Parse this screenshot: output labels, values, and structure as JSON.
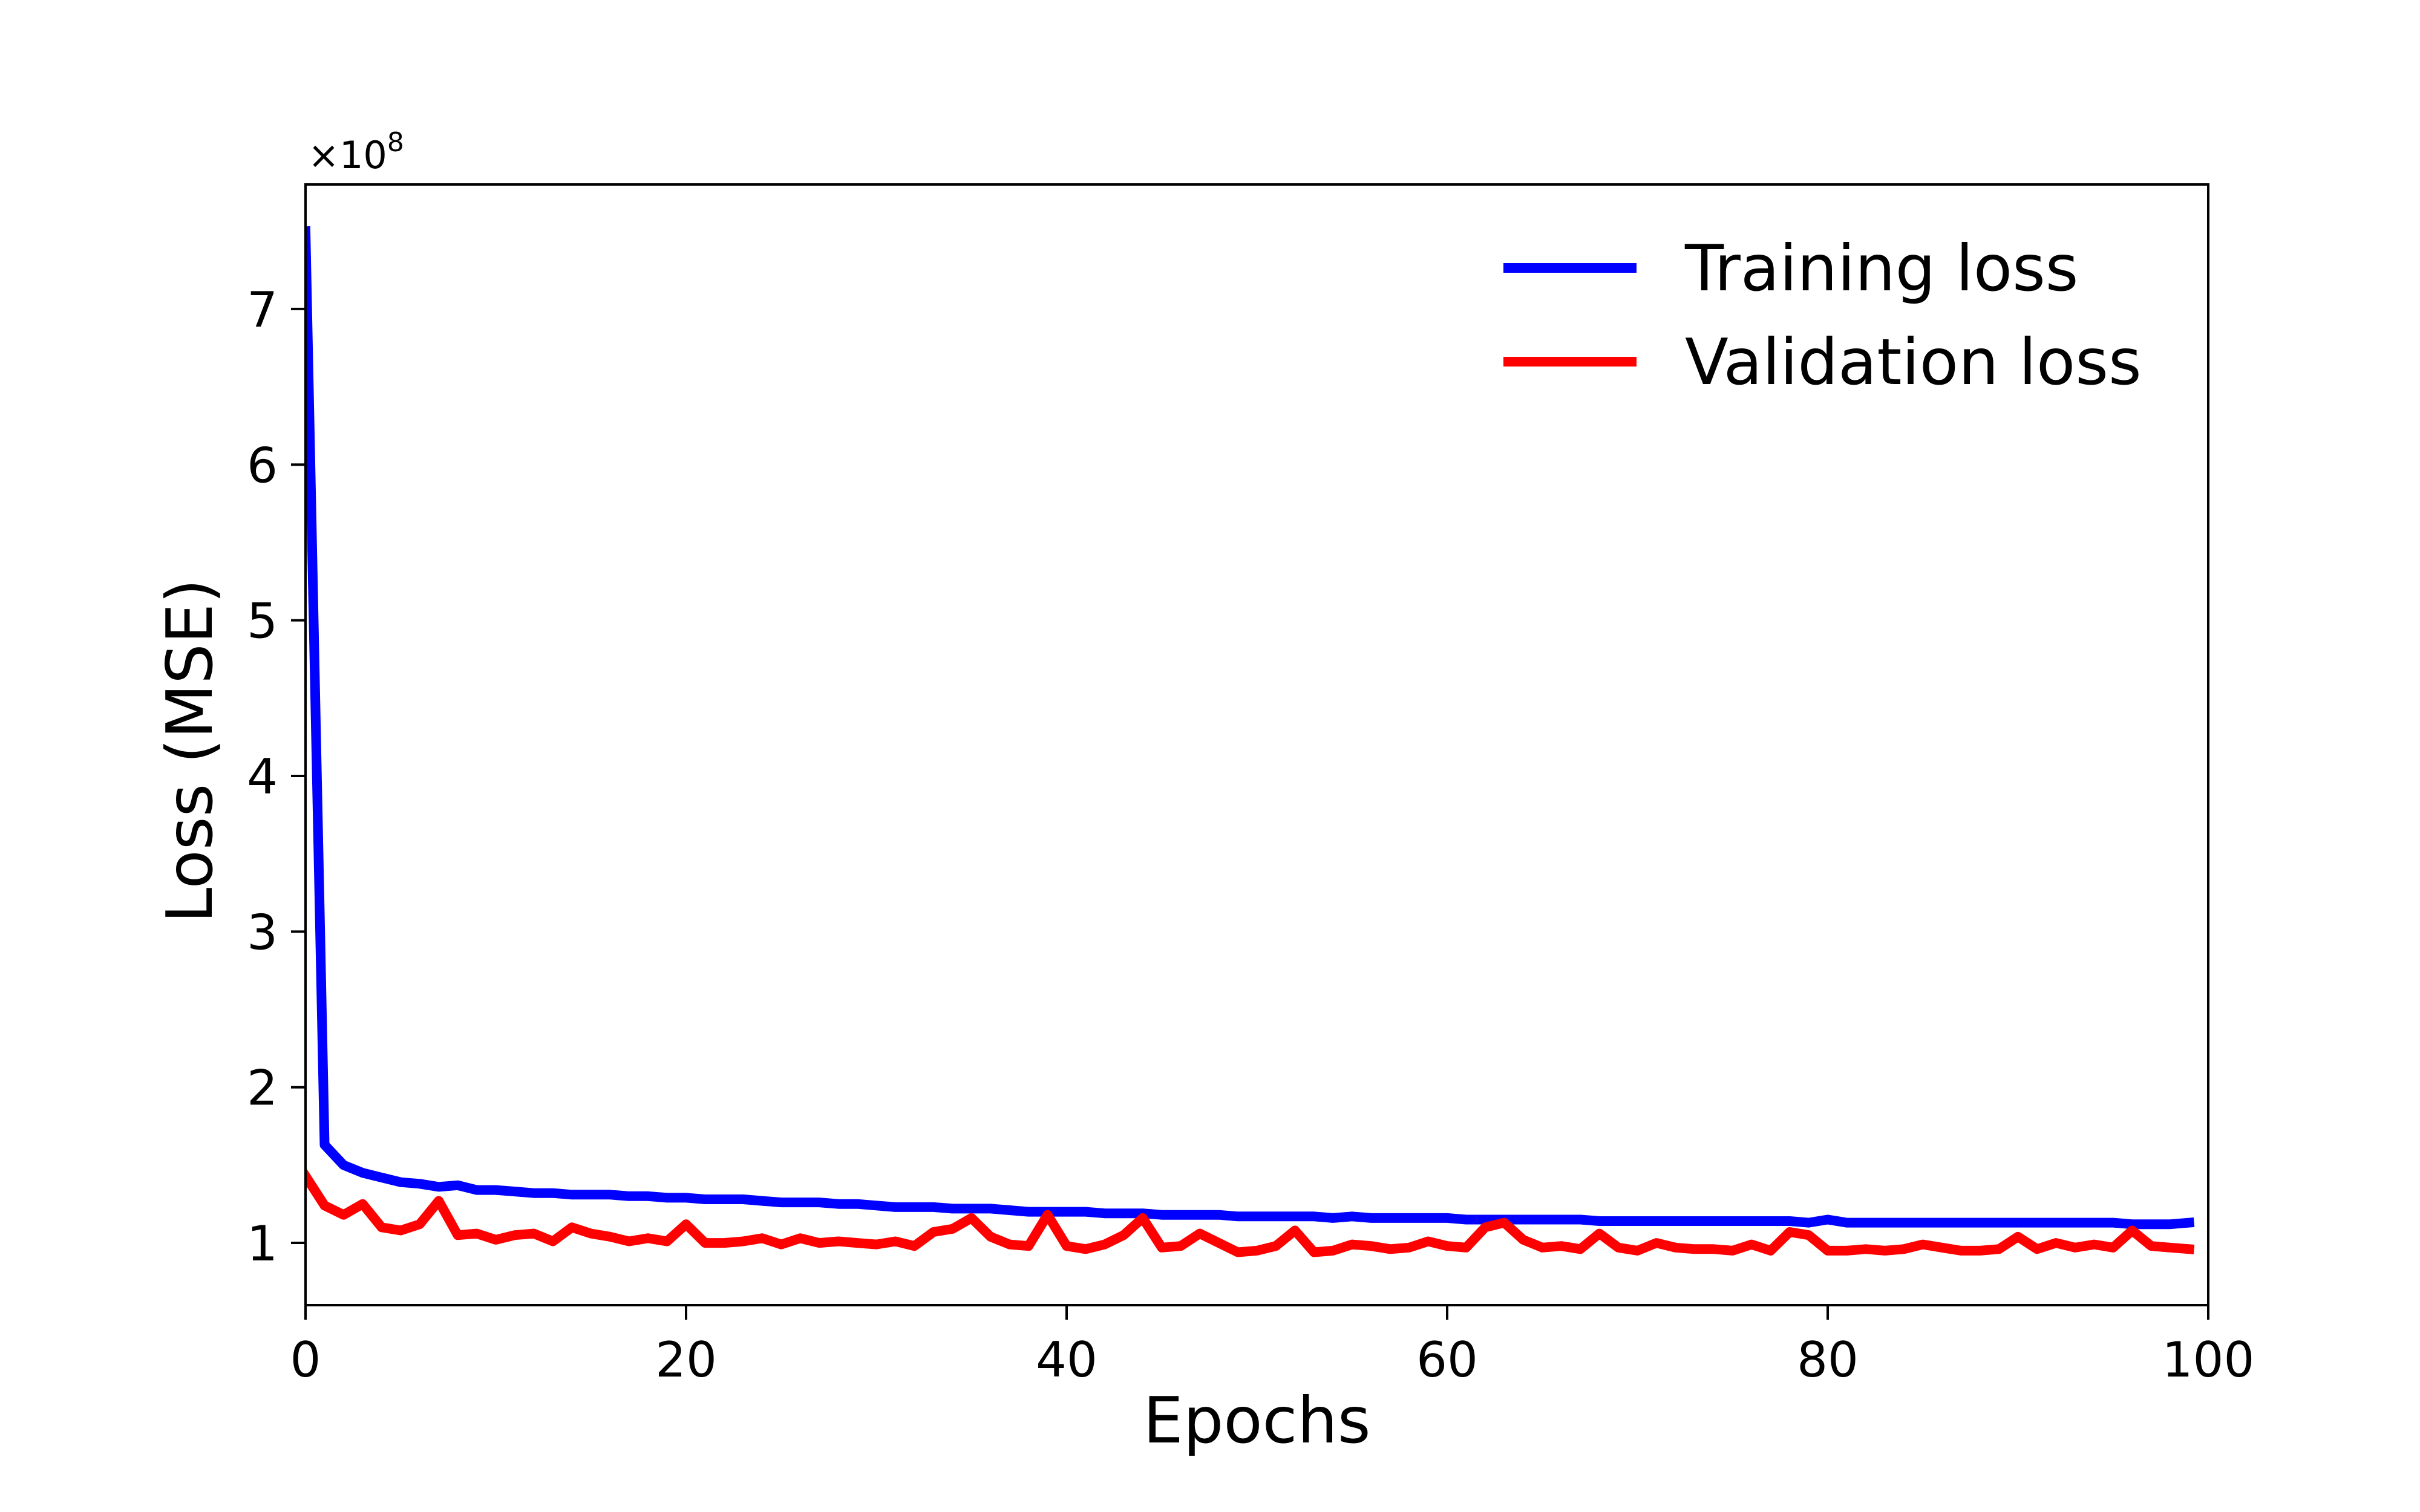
{
  "chart_data": {
    "type": "line",
    "xlabel": "Epochs",
    "ylabel": "Loss (MSE)",
    "y_offset_text": "×10",
    "y_offset_exponent": "8",
    "y_scale_factor": 100000000,
    "xlim": [
      0,
      100
    ],
    "ylim": [
      0.6,
      7.8
    ],
    "xticks": [
      0,
      20,
      40,
      60,
      80,
      100
    ],
    "xtick_labels": [
      "0",
      "20",
      "40",
      "60",
      "80",
      "100"
    ],
    "yticks": [
      1,
      2,
      3,
      4,
      5,
      6,
      7
    ],
    "ytick_labels": [
      "1",
      "2",
      "3",
      "4",
      "5",
      "6",
      "7"
    ],
    "grid": false,
    "legend_position": "top-right",
    "x": [
      0,
      1,
      2,
      3,
      4,
      5,
      6,
      7,
      8,
      9,
      10,
      11,
      12,
      13,
      14,
      15,
      16,
      17,
      18,
      19,
      20,
      21,
      22,
      23,
      24,
      25,
      26,
      27,
      28,
      29,
      30,
      31,
      32,
      33,
      34,
      35,
      36,
      37,
      38,
      39,
      40,
      41,
      42,
      43,
      44,
      45,
      46,
      47,
      48,
      49,
      50,
      51,
      52,
      53,
      54,
      55,
      56,
      57,
      58,
      59,
      60,
      61,
      62,
      63,
      64,
      65,
      66,
      67,
      68,
      69,
      70,
      71,
      72,
      73,
      74,
      75,
      76,
      77,
      78,
      79,
      80,
      81,
      82,
      83,
      84,
      85,
      86,
      87,
      88,
      89,
      90,
      91,
      92,
      93,
      94,
      95,
      96,
      97,
      98,
      99
    ],
    "series": [
      {
        "name": "Training loss",
        "color": "#0000ff",
        "values": [
          7.5,
          1.63,
          1.5,
          1.45,
          1.42,
          1.39,
          1.38,
          1.36,
          1.37,
          1.34,
          1.34,
          1.33,
          1.32,
          1.32,
          1.31,
          1.31,
          1.31,
          1.3,
          1.3,
          1.29,
          1.29,
          1.28,
          1.28,
          1.28,
          1.27,
          1.26,
          1.26,
          1.26,
          1.25,
          1.25,
          1.24,
          1.23,
          1.23,
          1.23,
          1.22,
          1.22,
          1.22,
          1.21,
          1.2,
          1.2,
          1.2,
          1.2,
          1.19,
          1.19,
          1.19,
          1.18,
          1.18,
          1.18,
          1.18,
          1.17,
          1.17,
          1.17,
          1.17,
          1.17,
          1.16,
          1.17,
          1.16,
          1.16,
          1.16,
          1.16,
          1.16,
          1.15,
          1.15,
          1.15,
          1.15,
          1.15,
          1.15,
          1.15,
          1.14,
          1.14,
          1.14,
          1.14,
          1.14,
          1.14,
          1.14,
          1.14,
          1.14,
          1.14,
          1.14,
          1.13,
          1.15,
          1.13,
          1.13,
          1.13,
          1.13,
          1.13,
          1.13,
          1.13,
          1.13,
          1.13,
          1.13,
          1.13,
          1.13,
          1.13,
          1.13,
          1.13,
          1.12,
          1.12,
          1.12,
          1.13
        ]
      },
      {
        "name": "Validation loss",
        "color": "#ff0000",
        "values": [
          1.43,
          1.24,
          1.18,
          1.25,
          1.1,
          1.08,
          1.12,
          1.27,
          1.05,
          1.06,
          1.02,
          1.05,
          1.06,
          1.01,
          1.1,
          1.06,
          1.04,
          1.01,
          1.03,
          1.01,
          1.12,
          1.0,
          1.0,
          1.01,
          1.03,
          0.99,
          1.03,
          1.0,
          1.01,
          1.0,
          0.99,
          1.01,
          0.98,
          1.07,
          1.09,
          1.16,
          1.04,
          0.99,
          0.98,
          1.18,
          0.98,
          0.96,
          0.99,
          1.05,
          1.16,
          0.97,
          0.98,
          1.06,
          1.0,
          0.94,
          0.95,
          0.98,
          1.08,
          0.94,
          0.95,
          0.99,
          0.98,
          0.96,
          0.97,
          1.01,
          0.98,
          0.97,
          1.1,
          1.13,
          1.02,
          0.97,
          0.98,
          0.96,
          1.06,
          0.97,
          0.95,
          1.0,
          0.97,
          0.96,
          0.96,
          0.95,
          0.99,
          0.95,
          1.07,
          1.05,
          0.95,
          0.95,
          0.96,
          0.95,
          0.96,
          0.99,
          0.97,
          0.95,
          0.95,
          0.96,
          1.04,
          0.96,
          1.0,
          0.97,
          0.99,
          0.97,
          1.08,
          0.98,
          0.97,
          0.96
        ]
      }
    ]
  }
}
